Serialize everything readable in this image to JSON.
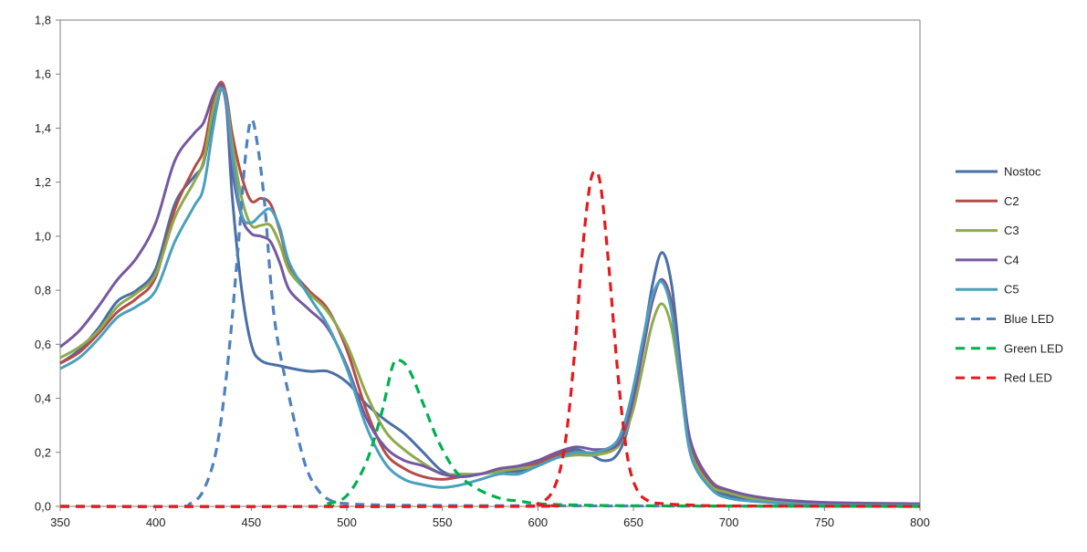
{
  "chart_data": {
    "type": "line",
    "title": "",
    "xlabel": "",
    "ylabel": "",
    "xlim": [
      350,
      800
    ],
    "ylim": [
      0,
      1.8
    ],
    "xticks": [
      350,
      400,
      450,
      500,
      550,
      600,
      650,
      700,
      750,
      800
    ],
    "yticks": [
      0,
      0.2,
      0.4,
      0.6,
      0.8,
      1.0,
      1.2,
      1.4,
      1.6,
      1.8
    ],
    "ytick_labels": [
      "0,0",
      "0,2",
      "0,4",
      "0,6",
      "0,8",
      "1,0",
      "1,2",
      "1,4",
      "1,6",
      "1,8"
    ],
    "grid": false,
    "legend_position": "right",
    "series": [
      {
        "name": "Nostoc",
        "color": "#4A6FA5",
        "dash": false,
        "points": [
          [
            350,
            0.53
          ],
          [
            360,
            0.58
          ],
          [
            370,
            0.66
          ],
          [
            380,
            0.76
          ],
          [
            390,
            0.8
          ],
          [
            400,
            0.88
          ],
          [
            410,
            1.12
          ],
          [
            420,
            1.22
          ],
          [
            425,
            1.27
          ],
          [
            430,
            1.45
          ],
          [
            434,
            1.56
          ],
          [
            437,
            1.48
          ],
          [
            440,
            1.15
          ],
          [
            445,
            0.8
          ],
          [
            450,
            0.6
          ],
          [
            455,
            0.54
          ],
          [
            465,
            0.52
          ],
          [
            480,
            0.5
          ],
          [
            490,
            0.5
          ],
          [
            500,
            0.46
          ],
          [
            510,
            0.38
          ],
          [
            520,
            0.32
          ],
          [
            530,
            0.27
          ],
          [
            540,
            0.2
          ],
          [
            550,
            0.13
          ],
          [
            560,
            0.11
          ],
          [
            570,
            0.12
          ],
          [
            580,
            0.13
          ],
          [
            590,
            0.13
          ],
          [
            600,
            0.15
          ],
          [
            610,
            0.19
          ],
          [
            620,
            0.21
          ],
          [
            628,
            0.19
          ],
          [
            634,
            0.17
          ],
          [
            640,
            0.18
          ],
          [
            645,
            0.24
          ],
          [
            650,
            0.38
          ],
          [
            655,
            0.6
          ],
          [
            660,
            0.82
          ],
          [
            665,
            0.94
          ],
          [
            670,
            0.82
          ],
          [
            675,
            0.5
          ],
          [
            680,
            0.22
          ],
          [
            690,
            0.08
          ],
          [
            700,
            0.04
          ],
          [
            720,
            0.02
          ],
          [
            750,
            0.01
          ],
          [
            800,
            0.005
          ]
        ]
      },
      {
        "name": "C2",
        "color": "#B44C48",
        "dash": false,
        "points": [
          [
            350,
            0.53
          ],
          [
            360,
            0.57
          ],
          [
            370,
            0.64
          ],
          [
            380,
            0.72
          ],
          [
            390,
            0.77
          ],
          [
            400,
            0.85
          ],
          [
            410,
            1.1
          ],
          [
            420,
            1.25
          ],
          [
            425,
            1.32
          ],
          [
            430,
            1.5
          ],
          [
            434,
            1.57
          ],
          [
            437,
            1.52
          ],
          [
            440,
            1.38
          ],
          [
            445,
            1.22
          ],
          [
            450,
            1.13
          ],
          [
            455,
            1.14
          ],
          [
            460,
            1.12
          ],
          [
            465,
            1.02
          ],
          [
            470,
            0.89
          ],
          [
            480,
            0.8
          ],
          [
            490,
            0.73
          ],
          [
            500,
            0.58
          ],
          [
            510,
            0.36
          ],
          [
            520,
            0.2
          ],
          [
            530,
            0.14
          ],
          [
            540,
            0.11
          ],
          [
            550,
            0.1
          ],
          [
            560,
            0.11
          ],
          [
            570,
            0.12
          ],
          [
            580,
            0.13
          ],
          [
            590,
            0.14
          ],
          [
            600,
            0.16
          ],
          [
            610,
            0.19
          ],
          [
            620,
            0.2
          ],
          [
            630,
            0.19
          ],
          [
            640,
            0.22
          ],
          [
            645,
            0.28
          ],
          [
            650,
            0.4
          ],
          [
            655,
            0.58
          ],
          [
            660,
            0.76
          ],
          [
            665,
            0.84
          ],
          [
            670,
            0.75
          ],
          [
            675,
            0.48
          ],
          [
            680,
            0.22
          ],
          [
            690,
            0.09
          ],
          [
            700,
            0.05
          ],
          [
            720,
            0.02
          ],
          [
            750,
            0.01
          ],
          [
            800,
            0.005
          ]
        ]
      },
      {
        "name": "C3",
        "color": "#8FAA4D",
        "dash": false,
        "points": [
          [
            350,
            0.55
          ],
          [
            360,
            0.59
          ],
          [
            370,
            0.65
          ],
          [
            380,
            0.74
          ],
          [
            390,
            0.79
          ],
          [
            400,
            0.86
          ],
          [
            410,
            1.07
          ],
          [
            420,
            1.2
          ],
          [
            425,
            1.28
          ],
          [
            430,
            1.47
          ],
          [
            434,
            1.55
          ],
          [
            437,
            1.5
          ],
          [
            440,
            1.34
          ],
          [
            445,
            1.14
          ],
          [
            450,
            1.04
          ],
          [
            455,
            1.04
          ],
          [
            460,
            1.04
          ],
          [
            465,
            0.97
          ],
          [
            470,
            0.87
          ],
          [
            480,
            0.79
          ],
          [
            490,
            0.72
          ],
          [
            500,
            0.6
          ],
          [
            510,
            0.42
          ],
          [
            520,
            0.28
          ],
          [
            530,
            0.21
          ],
          [
            540,
            0.16
          ],
          [
            550,
            0.12
          ],
          [
            560,
            0.12
          ],
          [
            570,
            0.12
          ],
          [
            580,
            0.13
          ],
          [
            590,
            0.14
          ],
          [
            600,
            0.15
          ],
          [
            610,
            0.18
          ],
          [
            620,
            0.19
          ],
          [
            630,
            0.19
          ],
          [
            640,
            0.21
          ],
          [
            645,
            0.26
          ],
          [
            650,
            0.36
          ],
          [
            655,
            0.52
          ],
          [
            660,
            0.68
          ],
          [
            665,
            0.75
          ],
          [
            670,
            0.66
          ],
          [
            675,
            0.43
          ],
          [
            680,
            0.2
          ],
          [
            690,
            0.08
          ],
          [
            700,
            0.05
          ],
          [
            720,
            0.02
          ],
          [
            750,
            0.01
          ],
          [
            800,
            0.005
          ]
        ]
      },
      {
        "name": "C4",
        "color": "#7558A0",
        "dash": false,
        "points": [
          [
            350,
            0.59
          ],
          [
            360,
            0.65
          ],
          [
            370,
            0.74
          ],
          [
            380,
            0.84
          ],
          [
            390,
            0.92
          ],
          [
            400,
            1.05
          ],
          [
            410,
            1.28
          ],
          [
            420,
            1.38
          ],
          [
            425,
            1.42
          ],
          [
            430,
            1.52
          ],
          [
            434,
            1.56
          ],
          [
            437,
            1.48
          ],
          [
            440,
            1.25
          ],
          [
            445,
            1.07
          ],
          [
            450,
            1.01
          ],
          [
            455,
            1.0
          ],
          [
            460,
            0.98
          ],
          [
            465,
            0.9
          ],
          [
            470,
            0.8
          ],
          [
            480,
            0.73
          ],
          [
            490,
            0.66
          ],
          [
            500,
            0.52
          ],
          [
            510,
            0.33
          ],
          [
            520,
            0.22
          ],
          [
            530,
            0.17
          ],
          [
            540,
            0.15
          ],
          [
            550,
            0.12
          ],
          [
            560,
            0.11
          ],
          [
            570,
            0.12
          ],
          [
            580,
            0.14
          ],
          [
            590,
            0.15
          ],
          [
            600,
            0.17
          ],
          [
            610,
            0.2
          ],
          [
            620,
            0.22
          ],
          [
            630,
            0.21
          ],
          [
            640,
            0.22
          ],
          [
            645,
            0.27
          ],
          [
            650,
            0.4
          ],
          [
            655,
            0.58
          ],
          [
            660,
            0.76
          ],
          [
            665,
            0.84
          ],
          [
            670,
            0.74
          ],
          [
            675,
            0.49
          ],
          [
            680,
            0.24
          ],
          [
            690,
            0.1
          ],
          [
            700,
            0.06
          ],
          [
            720,
            0.03
          ],
          [
            750,
            0.015
          ],
          [
            800,
            0.01
          ]
        ]
      },
      {
        "name": "C5",
        "color": "#48A0BE",
        "dash": false,
        "points": [
          [
            350,
            0.51
          ],
          [
            360,
            0.55
          ],
          [
            370,
            0.62
          ],
          [
            380,
            0.7
          ],
          [
            390,
            0.74
          ],
          [
            400,
            0.8
          ],
          [
            410,
            0.98
          ],
          [
            420,
            1.11
          ],
          [
            425,
            1.18
          ],
          [
            430,
            1.4
          ],
          [
            434,
            1.54
          ],
          [
            437,
            1.5
          ],
          [
            440,
            1.3
          ],
          [
            445,
            1.08
          ],
          [
            450,
            1.05
          ],
          [
            455,
            1.08
          ],
          [
            460,
            1.1
          ],
          [
            465,
            1.03
          ],
          [
            470,
            0.9
          ],
          [
            480,
            0.78
          ],
          [
            490,
            0.67
          ],
          [
            500,
            0.51
          ],
          [
            510,
            0.3
          ],
          [
            520,
            0.16
          ],
          [
            530,
            0.1
          ],
          [
            540,
            0.08
          ],
          [
            550,
            0.07
          ],
          [
            560,
            0.08
          ],
          [
            570,
            0.1
          ],
          [
            580,
            0.12
          ],
          [
            590,
            0.12
          ],
          [
            600,
            0.15
          ],
          [
            610,
            0.18
          ],
          [
            620,
            0.2
          ],
          [
            630,
            0.2
          ],
          [
            640,
            0.23
          ],
          [
            645,
            0.3
          ],
          [
            650,
            0.44
          ],
          [
            655,
            0.62
          ],
          [
            660,
            0.78
          ],
          [
            665,
            0.83
          ],
          [
            670,
            0.72
          ],
          [
            675,
            0.45
          ],
          [
            680,
            0.19
          ],
          [
            690,
            0.07
          ],
          [
            700,
            0.03
          ],
          [
            720,
            0.015
          ],
          [
            750,
            0.005
          ],
          [
            800,
            0.003
          ]
        ]
      },
      {
        "name": "Blue LED",
        "color": "#4F81BD",
        "dash": true,
        "points": [
          [
            350,
            0
          ],
          [
            410,
            0
          ],
          [
            418,
            0.01
          ],
          [
            425,
            0.06
          ],
          [
            432,
            0.22
          ],
          [
            438,
            0.55
          ],
          [
            443,
            0.95
          ],
          [
            447,
            1.3
          ],
          [
            450,
            1.43
          ],
          [
            453,
            1.35
          ],
          [
            457,
            1.12
          ],
          [
            462,
            0.7
          ],
          [
            470,
            0.4
          ],
          [
            478,
            0.16
          ],
          [
            485,
            0.06
          ],
          [
            492,
            0.02
          ],
          [
            500,
            0.01
          ],
          [
            520,
            0.005
          ],
          [
            560,
            0.003
          ],
          [
            620,
            0.002
          ],
          [
            700,
            0.001
          ],
          [
            800,
            0
          ]
        ]
      },
      {
        "name": "Green LED",
        "color": "#00B050",
        "dash": true,
        "points": [
          [
            350,
            0
          ],
          [
            480,
            0
          ],
          [
            490,
            0.01
          ],
          [
            500,
            0.04
          ],
          [
            510,
            0.16
          ],
          [
            518,
            0.34
          ],
          [
            524,
            0.52
          ],
          [
            528,
            0.54
          ],
          [
            533,
            0.5
          ],
          [
            540,
            0.38
          ],
          [
            548,
            0.24
          ],
          [
            557,
            0.13
          ],
          [
            567,
            0.07
          ],
          [
            580,
            0.03
          ],
          [
            590,
            0.02
          ],
          [
            600,
            0.01
          ],
          [
            620,
            0.005
          ],
          [
            660,
            0.002
          ],
          [
            800,
            0
          ]
        ]
      },
      {
        "name": "Red LED",
        "color": "#E41A1C",
        "dash": true,
        "points": [
          [
            350,
            0
          ],
          [
            590,
            0
          ],
          [
            600,
            0.01
          ],
          [
            608,
            0.06
          ],
          [
            614,
            0.22
          ],
          [
            619,
            0.55
          ],
          [
            623,
            0.92
          ],
          [
            627,
            1.18
          ],
          [
            630,
            1.24
          ],
          [
            633,
            1.18
          ],
          [
            637,
            0.9
          ],
          [
            642,
            0.48
          ],
          [
            647,
            0.18
          ],
          [
            652,
            0.06
          ],
          [
            658,
            0.02
          ],
          [
            665,
            0.01
          ],
          [
            680,
            0.005
          ],
          [
            700,
            0.002
          ],
          [
            800,
            0
          ]
        ]
      }
    ]
  }
}
